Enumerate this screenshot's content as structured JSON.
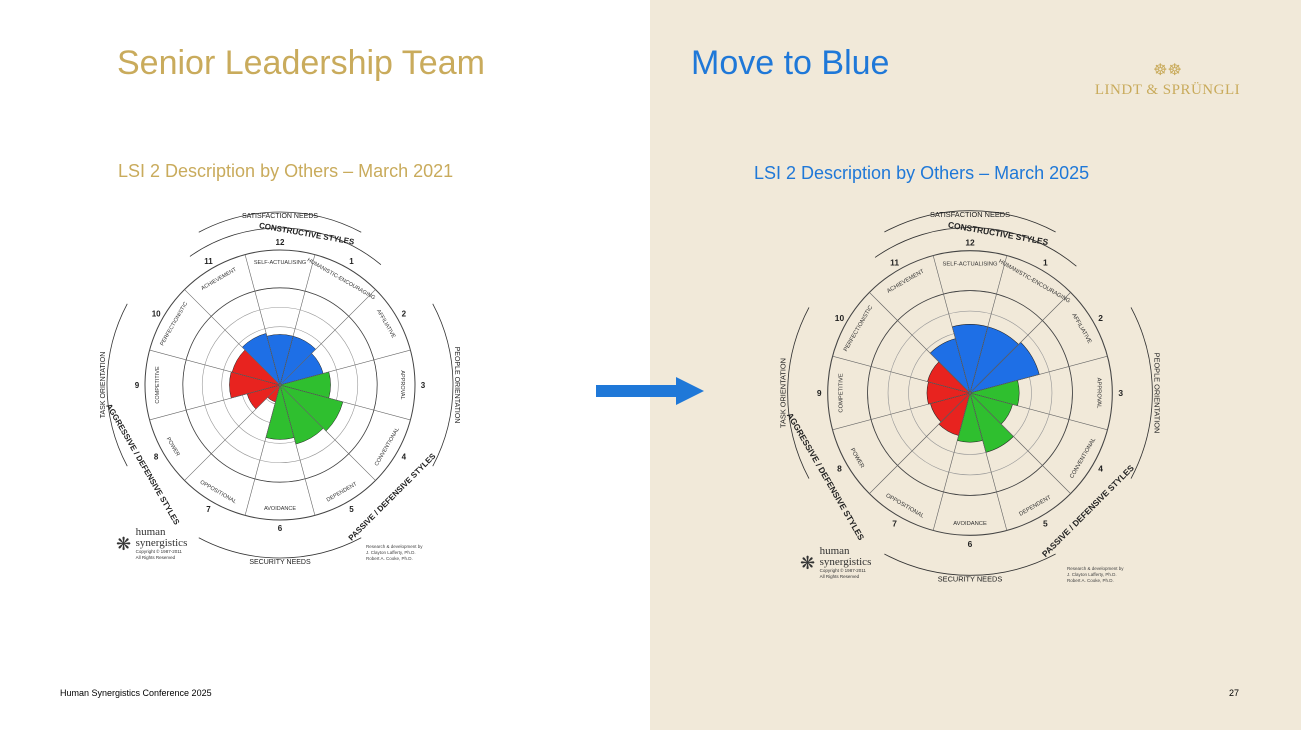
{
  "slide": {
    "left_title": "Senior Leadership Team",
    "left_subtitle": "LSI 2 Description by Others – March 2021",
    "right_title": "Move to Blue",
    "right_subtitle": "LSI 2 Description by Others  – March 2025",
    "footer_left": "Human Synergistics Conference 2025",
    "page_number": "27",
    "colors": {
      "gold": "#c9ab5c",
      "blue_title": "#1f78d8",
      "panel_bg": "#f1e9d9",
      "arrow": "#1f78d8",
      "constructive": "#1e6fe6",
      "passive": "#2fbf2f",
      "aggressive": "#e8231f"
    }
  },
  "logo": {
    "mark": "☸☸",
    "brand": "LINDT & SPRÜNGLI"
  },
  "circumplex_labels": {
    "satisfaction_needs": "SATISFACTION NEEDS",
    "security_needs": "SECURITY NEEDS",
    "people_orientation": "PEOPLE ORIENTATION",
    "task_orientation": "TASK ORIENTATION",
    "constructive": "CONSTRUCTIVE STYLES",
    "passive": "PASSIVE / DEFENSIVE STYLES",
    "aggressive": "AGGRESSIVE / DEFENSIVE STYLES",
    "styles": [
      {
        "num": "1",
        "name": "HUMANISTIC-ENCOURAGING"
      },
      {
        "num": "2",
        "name": "AFFILIATIVE"
      },
      {
        "num": "3",
        "name": "APPROVAL"
      },
      {
        "num": "4",
        "name": "CONVENTIONAL"
      },
      {
        "num": "5",
        "name": "DEPENDENT"
      },
      {
        "num": "6",
        "name": "AVOIDANCE"
      },
      {
        "num": "7",
        "name": "OPPOSITIONAL"
      },
      {
        "num": "8",
        "name": "POWER"
      },
      {
        "num": "9",
        "name": "COMPETITIVE"
      },
      {
        "num": "10",
        "name": "PERFECTIONISTIC"
      },
      {
        "num": "11",
        "name": "ACHIEVEMENT"
      },
      {
        "num": "12",
        "name": "SELF-ACTUALISING"
      }
    ]
  },
  "branding": {
    "hs_name_1": "human",
    "hs_name_2": "synergistics",
    "hs_copy_1": "Copyright © 1987-2011",
    "hs_copy_2": "All Rights Reserved",
    "credit_1": "Research & development by",
    "credit_2": "J. Clayton Lafferty, Ph.D.",
    "credit_3": "Robert A. Cooke, Ph.D."
  },
  "circumplex_2021": {
    "style_scores": [
      0.52,
      0.46,
      0.52,
      0.67,
      0.63,
      0.56,
      0.18,
      0.35,
      0.52,
      0.51,
      0.55,
      0.52
    ]
  },
  "circumplex_2025": {
    "style_scores": [
      0.67,
      0.7,
      0.48,
      0.43,
      0.6,
      0.48,
      0.43,
      0.4,
      0.42,
      0.43,
      0.55,
      0.67
    ]
  }
}
